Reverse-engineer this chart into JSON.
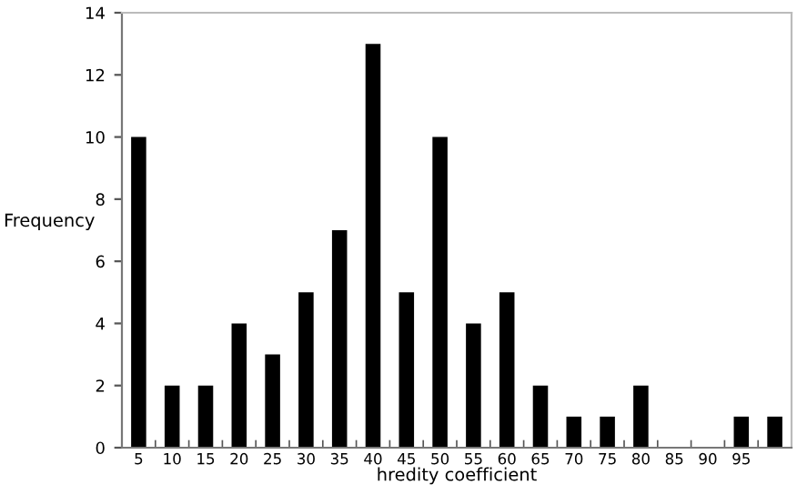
{
  "chart_data": {
    "type": "bar",
    "xlabel": "hredity coefficient",
    "ylabel": "Frequency",
    "categories": [
      "5",
      "10",
      "15",
      "20",
      "25",
      "30",
      "35",
      "40",
      "45",
      "50",
      "55",
      "60",
      "65",
      "70",
      "75",
      "80",
      "85",
      "90",
      "95",
      null
    ],
    "values": [
      10,
      2,
      2,
      4,
      3,
      5,
      7,
      13,
      5,
      10,
      4,
      5,
      2,
      1,
      1,
      2,
      0,
      0,
      1,
      1
    ],
    "color": "#000000",
    "ylim": [
      0,
      14
    ],
    "yticks": [
      0,
      2,
      4,
      6,
      8,
      10,
      12,
      14
    ],
    "grid": false,
    "legend": false
  }
}
